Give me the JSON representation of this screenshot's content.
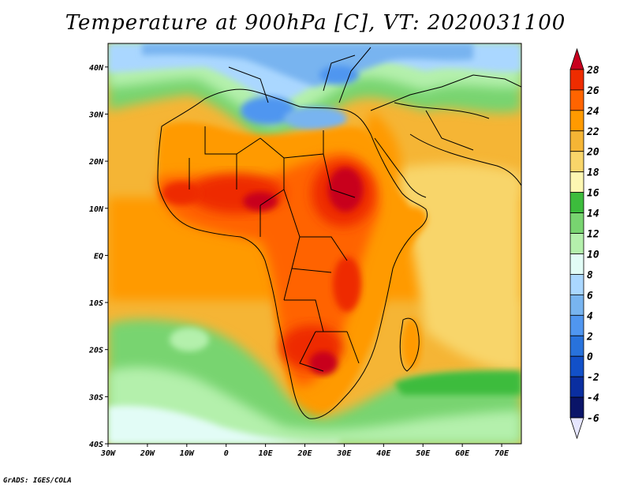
{
  "title": "Temperature at 900hPa [C], VT: 2020031100",
  "credit": "GrADS: IGES/COLA",
  "map": {
    "lon_range": [
      -30,
      75
    ],
    "lat_range": [
      -40,
      45
    ],
    "lon_ticks": [
      {
        "value": -30,
        "label": "30W"
      },
      {
        "value": -20,
        "label": "20W"
      },
      {
        "value": -10,
        "label": "10W"
      },
      {
        "value": 0,
        "label": "0"
      },
      {
        "value": 10,
        "label": "10E"
      },
      {
        "value": 20,
        "label": "20E"
      },
      {
        "value": 30,
        "label": "30E"
      },
      {
        "value": 40,
        "label": "40E"
      },
      {
        "value": 50,
        "label": "50E"
      },
      {
        "value": 60,
        "label": "60E"
      },
      {
        "value": 70,
        "label": "70E"
      }
    ],
    "lat_ticks": [
      {
        "value": 40,
        "label": "40N"
      },
      {
        "value": 30,
        "label": "30N"
      },
      {
        "value": 20,
        "label": "20N"
      },
      {
        "value": 10,
        "label": "10N"
      },
      {
        "value": 0,
        "label": "EQ"
      },
      {
        "value": -10,
        "label": "10S"
      },
      {
        "value": -20,
        "label": "20S"
      },
      {
        "value": -30,
        "label": "30S"
      },
      {
        "value": -40,
        "label": "40S"
      }
    ]
  },
  "colorbar": {
    "levels": [
      "28",
      "26",
      "24",
      "22",
      "20",
      "18",
      "16",
      "14",
      "12",
      "10",
      "8",
      "6",
      "4",
      "2",
      "0",
      "-2",
      "-4",
      "-6"
    ],
    "colors": [
      "#c8001e",
      "#ee2c00",
      "#ff6400",
      "#ff9a00",
      "#f5b535",
      "#f8d56a",
      "#fdf7b2",
      "#3cbc3c",
      "#78d470",
      "#b4f0ac",
      "#e2fcf6",
      "#aad7ff",
      "#78b4f0",
      "#5096f0",
      "#2872dc",
      "#1250c8",
      "#0a2ea0",
      "#0a1468",
      "#e6e6ff"
    ]
  }
}
